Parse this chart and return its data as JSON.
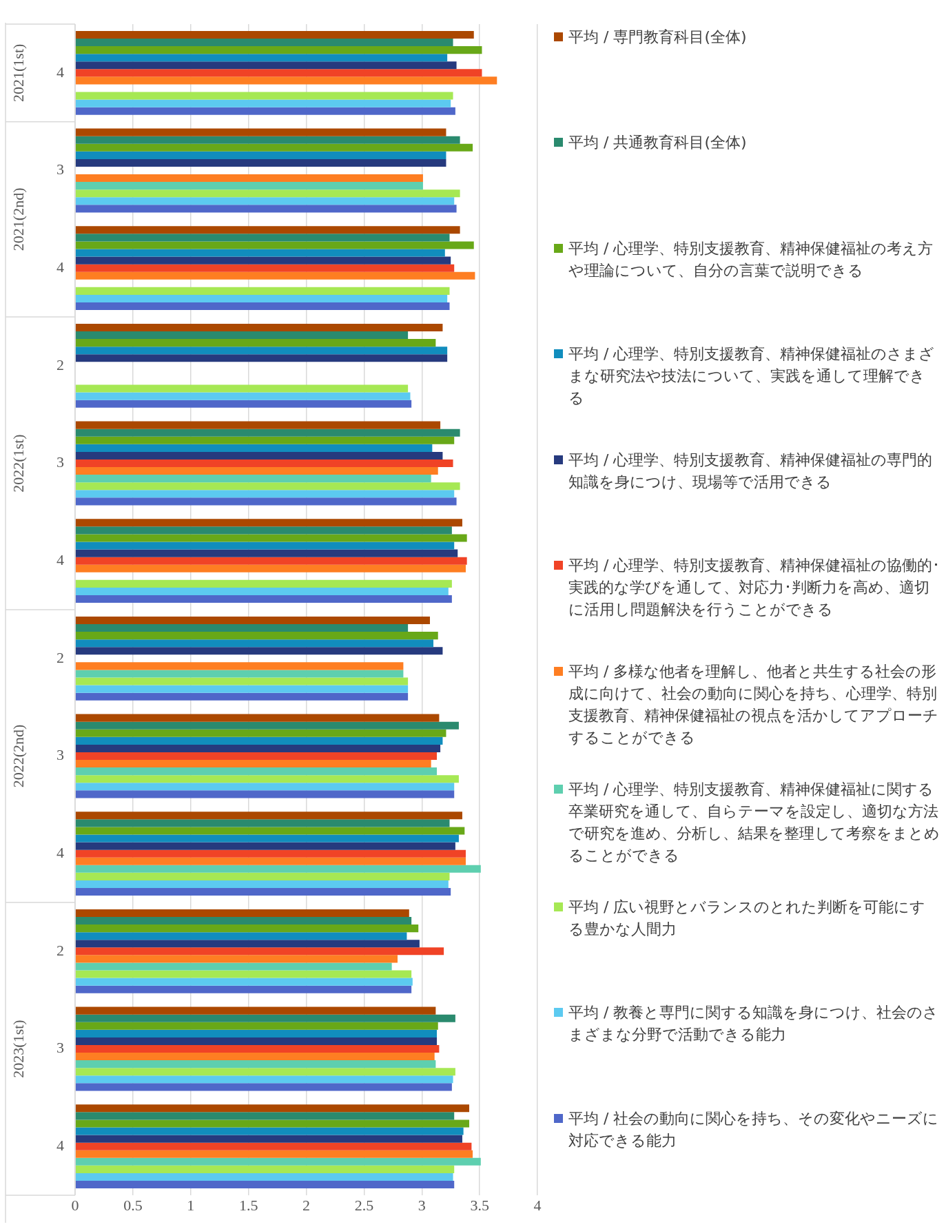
{
  "chart_data": {
    "type": "bar",
    "orientation": "horizontal",
    "categories": [
      "4",
      "3",
      "4",
      "2",
      "3",
      "4",
      "2",
      "3",
      "4",
      "2",
      "3",
      "4"
    ],
    "annotations": [
      "2021(1st)",
      "2021(2nd)",
      "2022(1st)",
      "2022(2nd)",
      "2023(1st)"
    ],
    "series": [
      {
        "name": "平均 / 専門教育科目(全体)",
        "color": "#ab4800",
        "values": [
          3.45,
          3.21,
          3.33,
          3.18,
          3.16,
          3.35,
          3.07,
          3.15,
          3.35,
          2.89,
          3.12,
          3.41
        ]
      },
      {
        "name": "平均 / 共通教育科目(全体)",
        "color": "#2a8a6e",
        "values": [
          3.27,
          3.33,
          3.24,
          2.88,
          3.33,
          3.26,
          2.88,
          3.32,
          3.24,
          2.91,
          3.29,
          3.28
        ]
      },
      {
        "name": "平均 / 心理学、特別支援教育、精神保健福祉の考え方や理論について、自分の言葉で説明できる",
        "color": "#68a818",
        "values": [
          3.52,
          3.44,
          3.45,
          3.12,
          3.28,
          3.39,
          3.14,
          3.21,
          3.37,
          2.97,
          3.14,
          3.41
        ]
      },
      {
        "name": "平均 / 心理学、特別支援教育、精神保健福祉のさまざまな研究法や技法について、実践を通して理解できる",
        "color": "#118dbd",
        "values": [
          3.22,
          3.21,
          3.2,
          3.22,
          3.09,
          3.28,
          3.1,
          3.18,
          3.32,
          2.87,
          3.13,
          3.36
        ]
      },
      {
        "name": "平均 / 心理学、特別支援教育、精神保健福祉の専門的知識を身につけ、現場等で活用できる",
        "color": "#263a7e",
        "values": [
          3.3,
          3.21,
          3.25,
          3.22,
          3.18,
          3.31,
          3.18,
          3.16,
          3.29,
          2.98,
          3.13,
          3.35
        ]
      },
      {
        "name": "平均 / 心理学、特別支援教育、精神保健福祉の協働的･実践的な学びを通して、対応力･判断力を高め、適切に活用し問題解決を行うことができる",
        "color": "#f04326",
        "values": [
          3.52,
          null,
          3.28,
          null,
          3.27,
          3.39,
          null,
          3.13,
          3.38,
          3.19,
          3.15,
          3.43
        ]
      },
      {
        "name": "平均 / 多様な他者を理解し、他者と共生する社会の形成に向けて、社会の動向に関心を持ち、心理学、特別支援教育、精神保健福祉の視点を活かしてアプローチすることができる",
        "color": "#fe7e22",
        "values": [
          3.65,
          3.01,
          3.46,
          null,
          3.14,
          3.38,
          2.84,
          3.08,
          3.38,
          2.79,
          3.11,
          3.44
        ]
      },
      {
        "name": "平均 / 心理学、特別支援教育、精神保健福祉に関する卒業研究を通して、自らテーマを設定し、適切な方法で研究を進め、分析し、結果を整理して考察をまとめることができる",
        "color": "#5ecfaf",
        "values": [
          null,
          3.01,
          null,
          null,
          3.08,
          null,
          2.84,
          3.13,
          3.51,
          2.74,
          3.12,
          3.51
        ]
      },
      {
        "name": "平均 / 広い視野とバランスのとれた判断を可能にする豊かな人間力",
        "color": "#a6e854",
        "values": [
          3.27,
          3.33,
          3.24,
          2.88,
          3.33,
          3.26,
          2.88,
          3.32,
          3.24,
          2.91,
          3.29,
          3.28
        ]
      },
      {
        "name": "平均 / 教養と専門に関する知識を身につけ、社会のさまざまな分野で活動できる能力",
        "color": "#5ccaf0",
        "values": [
          3.25,
          3.28,
          3.22,
          2.9,
          3.28,
          3.23,
          2.88,
          3.28,
          3.23,
          2.92,
          3.27,
          3.27
        ]
      },
      {
        "name": "平均 / 社会の動向に関心を持ち、その変化やニーズに対応できる能力",
        "color": "#4f67c9",
        "values": [
          3.29,
          3.3,
          3.24,
          2.91,
          3.3,
          3.26,
          2.88,
          3.28,
          3.25,
          2.91,
          3.26,
          3.28
        ]
      }
    ],
    "xlim": [
      0,
      4
    ],
    "xticks": [
      0,
      0.5,
      1,
      1.5,
      2,
      2.5,
      3,
      3.5,
      4
    ],
    "grid": "x",
    "legend": "right"
  }
}
